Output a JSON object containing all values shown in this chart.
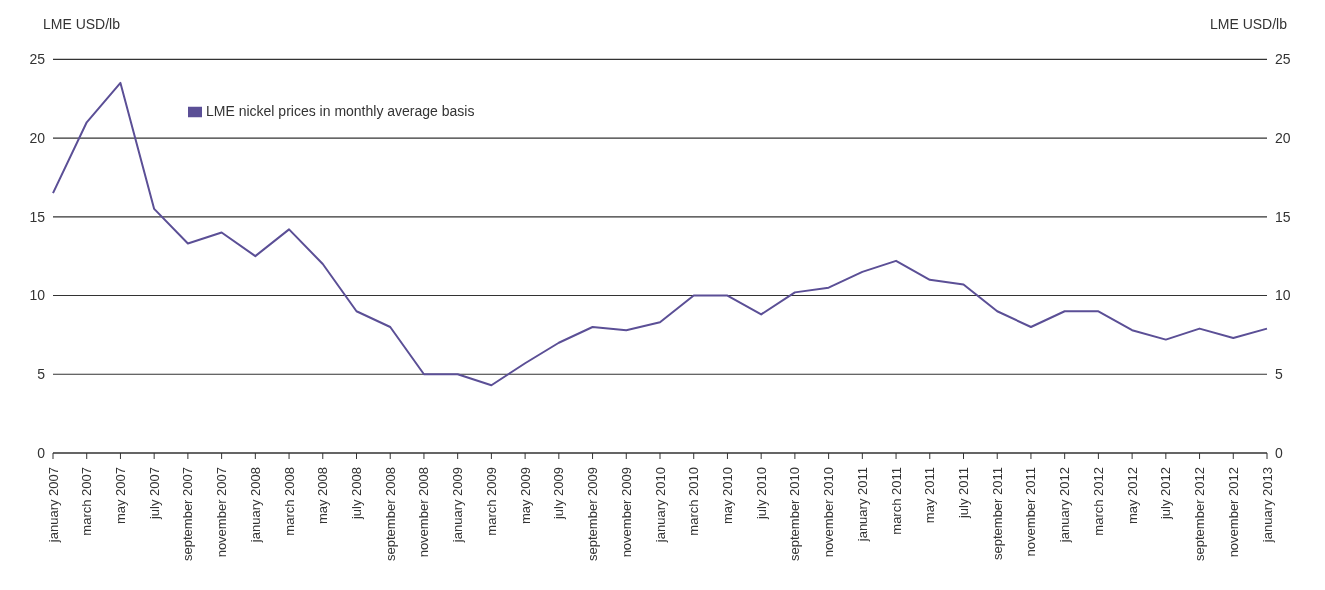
{
  "chart_data": {
    "type": "line",
    "ylabel": "LME USD/lb",
    "y2label": "LME USD/lb",
    "categories": [
      "january 2007",
      "march 2007",
      "may 2007",
      "july 2007",
      "september 2007",
      "november 2007",
      "january 2008",
      "march 2008",
      "may 2008",
      "july 2008",
      "september 2008",
      "november 2008",
      "january 2009",
      "march 2009",
      "may 2009",
      "july 2009",
      "september 2009",
      "november 2009",
      "january 2010",
      "march 2010",
      "may 2010",
      "july 2010",
      "september 2010",
      "november 2010",
      "january 2011",
      "march 2011",
      "may 2011",
      "july 2011",
      "september 2011",
      "november 2011",
      "january 2012",
      "march 2012",
      "may 2012",
      "july 2012",
      "september 2012",
      "november 2012",
      "january 2013"
    ],
    "series": [
      {
        "name": "LME nickel prices in monthly average basis",
        "color": "#5b4f96",
        "values": [
          16.5,
          21.0,
          23.5,
          15.5,
          13.3,
          14.0,
          12.5,
          14.2,
          12.0,
          9.0,
          8.0,
          5.0,
          5.0,
          4.3,
          5.7,
          7.0,
          8.0,
          7.8,
          8.3,
          10.0,
          10.0,
          8.8,
          10.2,
          10.5,
          11.5,
          12.2,
          11.0,
          10.7,
          9.0,
          8.0,
          9.0,
          9.0,
          7.8,
          7.2,
          7.9,
          7.3,
          7.9
        ]
      }
    ],
    "ylim": [
      0,
      25
    ],
    "yticks": [
      0,
      5,
      10,
      15,
      20,
      25
    ],
    "y2lim": [
      0,
      25
    ],
    "y2ticks": [
      0,
      5,
      10,
      15,
      20,
      25
    ],
    "grid": "y",
    "legend": "top left",
    "marker": "none",
    "line_style": "solid"
  }
}
